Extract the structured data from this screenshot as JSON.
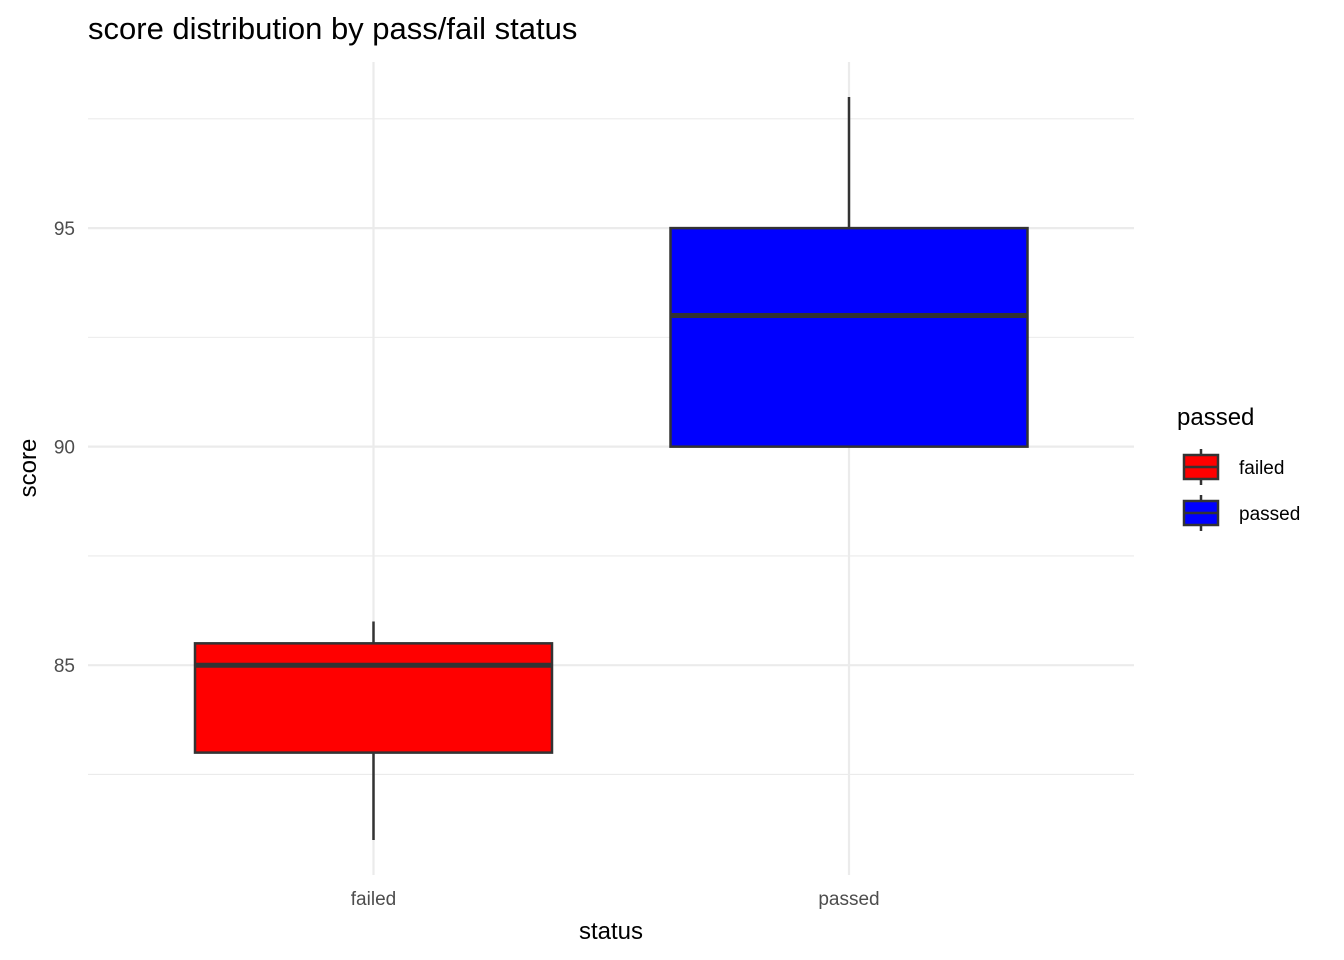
{
  "chart_data": {
    "type": "boxplot",
    "title": "score distribution by pass/fail status",
    "xlabel": "status",
    "ylabel": "score",
    "categories": [
      "failed",
      "passed"
    ],
    "ylim": [
      80.2,
      98.8
    ],
    "yticks": [
      85,
      90,
      95
    ],
    "y_minor_ticks": [
      82.5,
      87.5,
      92.5,
      97.5
    ],
    "grid": true,
    "legend": {
      "title": "passed",
      "position": "right",
      "entries": [
        "failed",
        "passed"
      ]
    },
    "colors": {
      "failed": "#ff0000",
      "passed": "#0000ff"
    },
    "boxes": [
      {
        "category": "failed",
        "whisker_low": 81,
        "q1": 83,
        "median": 85,
        "q3": 85.5,
        "whisker_high": 86
      },
      {
        "category": "passed",
        "whisker_low": 90,
        "q1": 90,
        "median": 93,
        "q3": 95,
        "whisker_high": 98
      }
    ]
  }
}
